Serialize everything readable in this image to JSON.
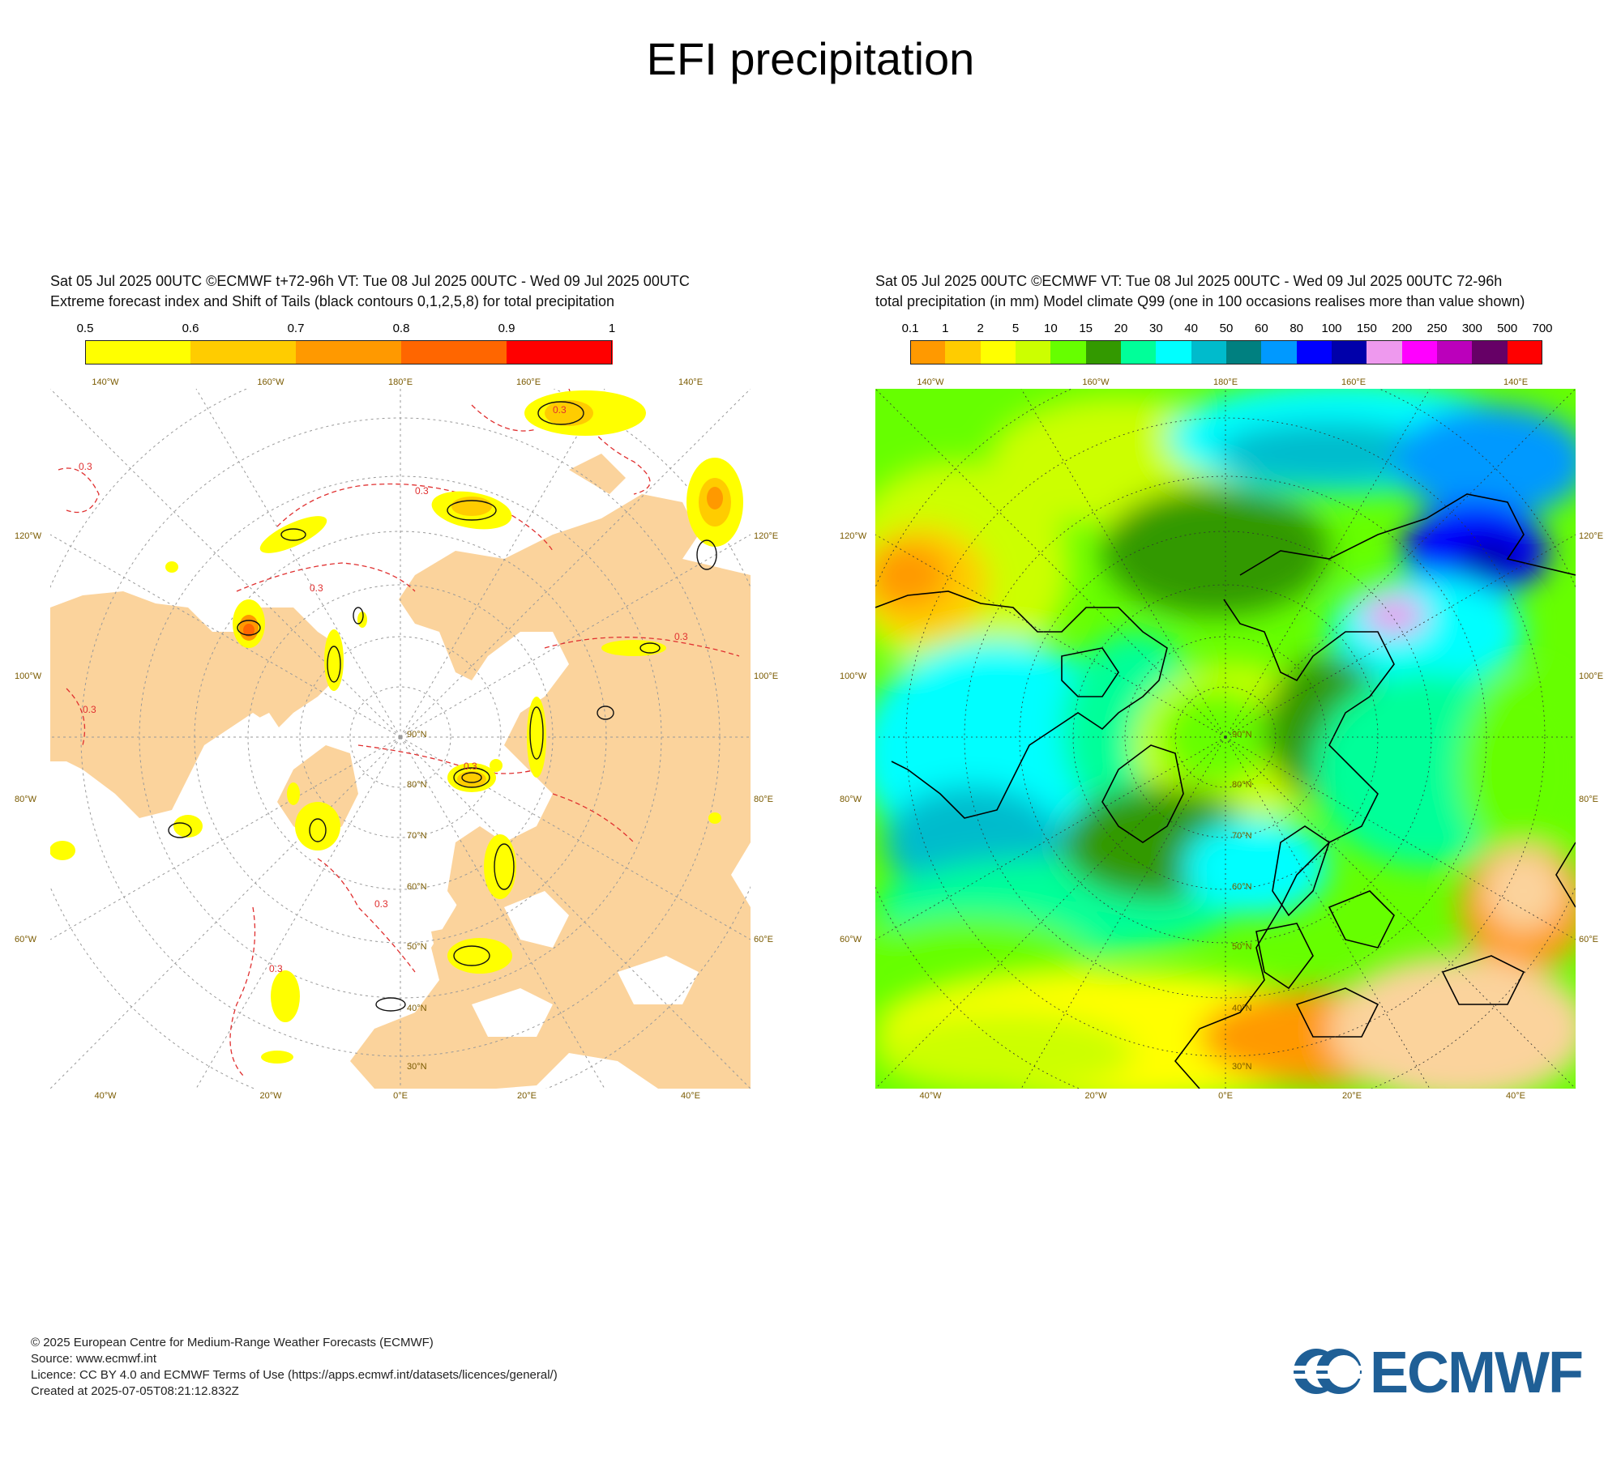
{
  "page": {
    "title": "EFI precipitation"
  },
  "left_panel": {
    "header_line1": "Sat 05 Jul 2025 00UTC ©ECMWF t+72-96h  VT: Tue 08 Jul 2025 00UTC - Wed 09 Jul 2025 00UTC",
    "header_line2": "Extreme forecast index and Shift of Tails (black contours 0,1,2,5,8) for total precipitation",
    "legend": {
      "ticks": [
        "0.5",
        "0.6",
        "0.7",
        "0.8",
        "0.9",
        "1"
      ],
      "colors": [
        "#ffff00",
        "#ffcc00",
        "#ff9900",
        "#ff6600",
        "#ff0000"
      ]
    },
    "map": {
      "land_color": "#fbd39c",
      "sea_color": "#ffffff",
      "contour_label": "0.3",
      "top_labels": [
        "140°W",
        "160°W",
        "180°E",
        "160°E",
        "140°E"
      ],
      "bottom_labels": [
        "40°W",
        "20°W",
        "0°E",
        "20°E",
        "40°E"
      ],
      "left_labels": [
        "120°W",
        "100°W",
        "80°W",
        "60°W"
      ],
      "right_labels": [
        "120°E",
        "100°E",
        "80°E",
        "60°E"
      ],
      "lat_labels": [
        "30°N",
        "40°N",
        "50°N",
        "60°N",
        "70°N",
        "80°N",
        "90°N"
      ]
    }
  },
  "right_panel": {
    "header_line1": "Sat 05 Jul 2025 00UTC ©ECMWF VT: Tue 08 Jul 2025 00UTC - Wed 09 Jul 2025 00UTC   72-96h",
    "header_line2": "total precipitation (in mm)  Model climate Q99 (one in 100 occasions realises more than value shown)",
    "legend": {
      "ticks": [
        "0.1",
        "1",
        "2",
        "5",
        "10",
        "15",
        "20",
        "30",
        "40",
        "50",
        "60",
        "80",
        "100",
        "150",
        "200",
        "250",
        "300",
        "500",
        "700"
      ],
      "colors": [
        "#ff9900",
        "#ffcc00",
        "#ffff00",
        "#ccff00",
        "#66ff00",
        "#339900",
        "#00ff99",
        "#00ffff",
        "#00bbcc",
        "#008080",
        "#0099ff",
        "#0000ff",
        "#0000aa",
        "#ee99ee",
        "#ff00ff",
        "#bb00bb",
        "#660066",
        "#ff0000"
      ]
    },
    "map": {
      "top_labels": [
        "140°W",
        "160°W",
        "180°E",
        "160°E",
        "140°E"
      ],
      "bottom_labels": [
        "40°W",
        "20°W",
        "0°E",
        "20°E",
        "40°E"
      ],
      "left_labels": [
        "120°W",
        "100°W",
        "80°W",
        "60°W"
      ],
      "right_labels": [
        "120°E",
        "100°E",
        "80°E",
        "60°E"
      ],
      "lat_labels": [
        "30°N",
        "40°N",
        "50°N",
        "60°N",
        "70°N",
        "80°N",
        "90°N"
      ]
    }
  },
  "footer": {
    "line1": "© 2025 European Centre for Medium-Range Weather Forecasts (ECMWF)",
    "line2": "Source: www.ecmwf.int",
    "line3": "Licence: CC BY 4.0 and ECMWF Terms of Use (https://apps.ecmwf.int/datasets/licences/general/)",
    "line4": "Created at 2025-07-05T08:21:12.832Z"
  },
  "logo": {
    "text": "ECMWF",
    "color": "#1f5f96"
  }
}
